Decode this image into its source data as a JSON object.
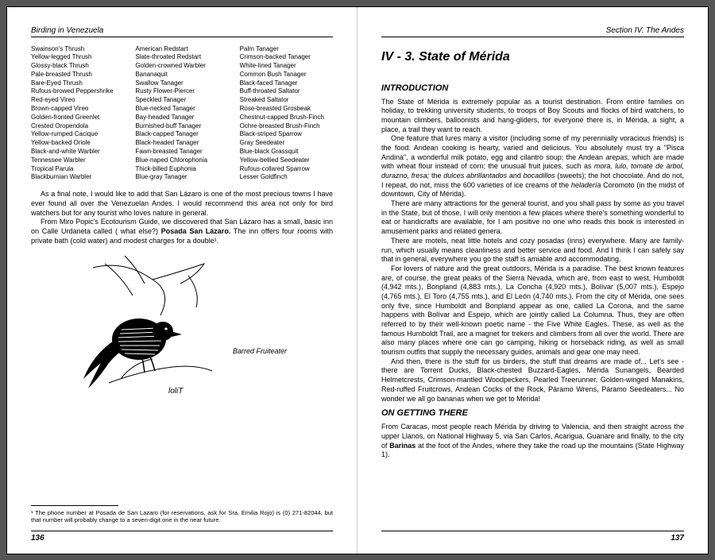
{
  "left": {
    "runningHead": "Birding in Venezuela",
    "folio": "136",
    "speciesCol1": [
      "Swainson's Thrush",
      "Yellow-legged Thrush",
      "Glossy-black Thrush",
      "Pale-breasted Thrush",
      "Bare-Eyed Thrush",
      "Rufous-browed Peppershrike",
      "Red-eyed Vireo",
      "Brown-capped Vireo",
      "Golden-fronted Greenlet",
      "Crested Oropendola",
      "Yellow-rumped Cacique",
      "Yellow-backed Oriole",
      "Black-and-white Warbler",
      "Tennessee Warbler",
      "Tropical Parula",
      "Blackburnian Warbler"
    ],
    "speciesCol2": [
      "American Redstart",
      "Slate-throated Redstart",
      "Golden-crowned Warbler",
      "Bananaquit",
      "Swallow Tanager",
      "Rusty Flower-Piercer",
      "Speckled Tanager",
      "Blue-necked Tanager",
      "Bay-headed Tanager",
      "Burnished-buff Tanager",
      "Black-capped Tanager",
      "Black-headed Tanager",
      "Fawn-breasted Tanager",
      "Blue-naped Chlorophonia",
      "Thick-billed Euphonia",
      "Blue-gray Tanager"
    ],
    "speciesCol3": [
      "Palm Tanager",
      "Crimson-backed Tanager",
      "White-lined Tanager",
      "Common Bush Tanager",
      "Black-faced Tanager",
      "Buff-throated Saltator",
      "Streaked Saltator",
      "Rose-breasted Grosbeak",
      "Chestnut-capped Brush-Finch",
      "Ochre-breasted Brush-Finch",
      "Black-striped Sparrow",
      "Gray Seedeater",
      "Blue-black Grassquit",
      "Yellow-bellied Seedeater",
      "Rufous-collared Sparrow",
      "Lesser Goldfinch"
    ],
    "para1": "As a final note, I would like to add that San Lázaro is one of the most precious towns I have ever found all over the Venezuelan Andes. I would recommend this area not only for bird watchers but for any tourist who loves nature in general.",
    "para2a": "From Miro Popic's Ecotourism Guide, we discovered that San Lázaro has a small, basic inn on Calle Urdaneta called ( what else?) ",
    "para2bold": "Posada San Lázaro.",
    "para2b": " The inn offers four rooms with private bath (cold water) and modest charges for a double¹.",
    "figureCaption": "Barred Fruiteater",
    "footnote": "¹  The phone number at Posada de San Lazaro (for reservations, ask for Sra. Emilia Rojo) is (0) 271-82044, but that number will probably change to a seven-digit one in the near future."
  },
  "right": {
    "runningHead": "Section IV. The Andes",
    "folio": "137",
    "chapterTitle": "IV - 3. State of Mérida",
    "sec1": "INTRODUCTION",
    "p1": "The State of Mérida is extremely popular as a tourist destination. From entire families on holiday, to trekking university students, to troops of Boy Scouts and flocks of bird watchers, to mountain climbers, balloonists and hang-gliders, for everyone there is, in Mérida, a sight, a place, a trail they want to reach.",
    "p2a": "One feature that lures many a visitor (including some of my perennially voracious friends) is the food. Andean cooking is hearty, varied and delicious. You absolutely must try a \"Pisca Andina\", a wonderful milk potato, egg and cilantro soup; the Andean ",
    "p2i1": "arepas,",
    "p2b": " which are made with wheat flour instead of corn; the unusual fruit juices, such as ",
    "p2i2": "mora, lulo, tomate de árbol, durazno, fresa;",
    "p2c": " the ",
    "p2i3": "dulces abrillantados",
    "p2d": " and ",
    "p2i4": "bocadillos",
    "p2e": " (sweets); the hot chocolate. And do not, I repeat, do not, miss the 600 varieties of ice creams of the ",
    "p2i5": "heladería",
    "p2f": " Coromoto (in the midst of downtown, City of Mérida).",
    "p3": "There are many attractions for the general tourist, and you shall pass by some as you travel in the State, but of those, I will only mention a few places where there's something wonderful to eat or handicrafts are available, for I am positive no one who reads this book is interested in amusement parks and related genera.",
    "p4": "There are motels, neat little hotels and cozy posadas (inns) everywhere. Many are family-run, which usually means cleanliness and better service and food. And I think I can safely say that in general, everywhere you go the staff is amiable and accommodating.",
    "p5": "For lovers of nature and the great outdoors, Mérida is a paradise. The best known features are, of course, the great peaks of the Sierra Nevada, which are, from east to west, Humboldt (4,942 mts.), Bonpland (4,883 mts.), La Concha (4,920 mts.), Bolívar (5,007 mts.), Espejo (4,765 mts.), El Toro (4,755 mts.), and El León (4,740 mts.). From the city of Mérida, one sees only five, since Humboldt and Bonpland appear as one, called La Corona, and the same happens with Bolívar and Espejo, which are jointly called La Columna. Thus, they are often referred to by their well-known poetic name - the Five White Eagles. These, as well as the famous Humboldt Trail, are a magnet for trekers and climbers from all over the world. There are also many places where one can go camping, hiking or horseback riding, as well as small tourism outfits that supply the necessary guides, animals and gear one may need.",
    "p6": "And then, there is the stuff for us birders, the stuff that dreams are made of... Let's see - there are Torrent Ducks, Black-chested Buzzard-Eagles, Mérida Sunangels, Bearded Helmetcrests, Crimson-mantled Woodpeckers, Pearled Treerunner, Golden-winged Manakins, Red-ruffed Fruitcrows, Andean Cocks of the Rock, Páramo Wrens, Páramo Seedeaters... No wonder we all go bananas when we get to Mérida!",
    "sec2": "ON GETTING THERE",
    "p7a": "From Caracas, most people reach Mérida by driving to Valencia, and then straight across the upper Llanos, on National Highway 5, via San Carlos, Acarigua, Guanare and finally, to the city of ",
    "p7bold": "Barinas",
    "p7b": " at the foot of the Andes, where they take the road up the mountains (State Highway 1)."
  }
}
